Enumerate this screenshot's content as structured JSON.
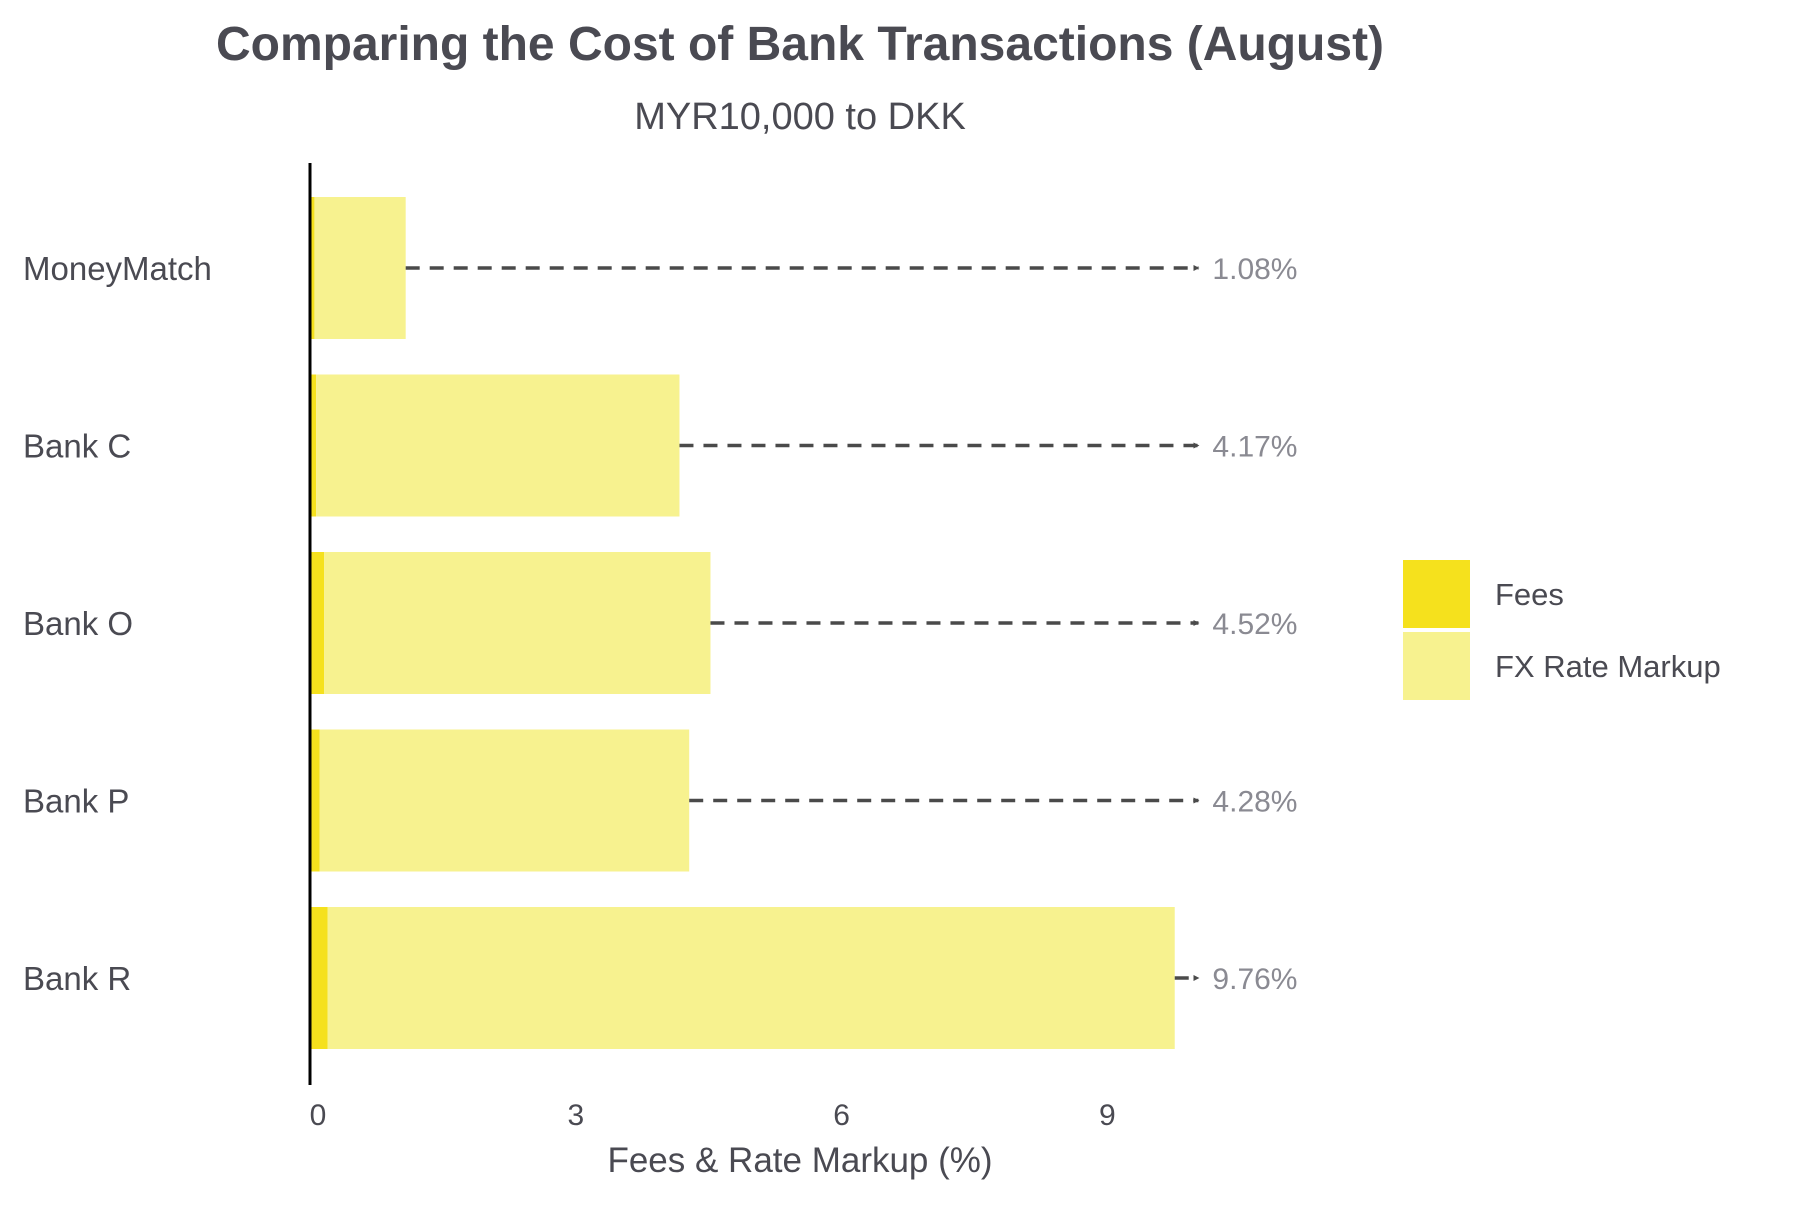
{
  "chart_data": {
    "type": "bar",
    "orientation": "horizontal",
    "stacked": true,
    "title": "Comparing the Cost of Bank Transactions (August)",
    "subtitle": "MYR10,000 to DKK",
    "xlabel": "Fees & Rate Markup (%)",
    "ylabel": "",
    "xlim": [
      0,
      10.5
    ],
    "xticks": [
      0,
      3,
      6,
      9
    ],
    "xtick_labels": [
      "0",
      "3",
      "6",
      "9"
    ],
    "grid": false,
    "legend_position": "right",
    "categories": [
      "MoneyMatch",
      "Bank C",
      "Bank O",
      "Bank P",
      "Bank R"
    ],
    "series": [
      {
        "name": "Fees",
        "color": "#f5e11d",
        "values": [
          0.05,
          0.07,
          0.16,
          0.11,
          0.2
        ]
      },
      {
        "name": "FX Rate Markup",
        "color": "#f7f28f",
        "values": [
          1.03,
          4.1,
          4.36,
          4.17,
          9.56
        ]
      }
    ],
    "totals": [
      1.08,
      4.17,
      4.52,
      4.28,
      9.76
    ],
    "total_labels": [
      "1.08%",
      "4.17%",
      "4.52%",
      "4.28%",
      "9.76%"
    ],
    "arrow_target": 10.05,
    "colors": {
      "text": "#4a4a52",
      "label_gray": "#8a8a92",
      "axis": "#000000",
      "arrow": "#4a4a4a"
    }
  }
}
